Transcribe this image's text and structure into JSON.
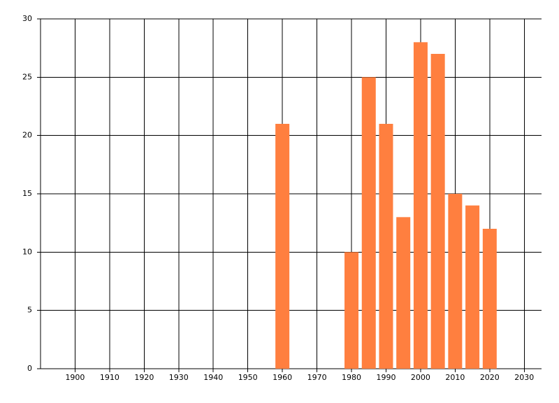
{
  "chart_data": {
    "type": "bar",
    "x": [
      1960,
      1980,
      1985,
      1990,
      1995,
      2000,
      2005,
      2010,
      2015,
      2020
    ],
    "values": [
      21,
      10,
      25,
      21,
      13,
      28,
      27,
      15,
      14,
      12
    ],
    "color": "#ff7f3f",
    "xlim": [
      1890,
      2035
    ],
    "xticks": [
      1900,
      1910,
      1920,
      1930,
      1940,
      1950,
      1960,
      1970,
      1980,
      1990,
      2000,
      2010,
      2020,
      2030
    ],
    "ylim": [
      0,
      30
    ],
    "yticks": [
      0,
      5,
      10,
      15,
      20,
      25,
      30
    ],
    "grid": true
  }
}
